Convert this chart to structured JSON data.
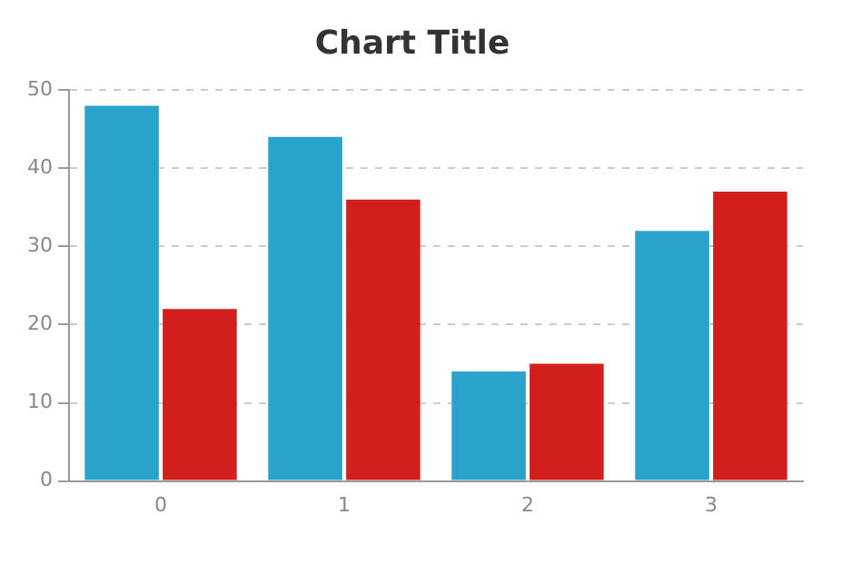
{
  "chart_data": {
    "type": "bar",
    "title": "Chart Title",
    "categories": [
      "0",
      "1",
      "2",
      "3"
    ],
    "series": [
      {
        "color": "#29a2cc",
        "values": [
          48,
          44,
          14,
          32
        ]
      },
      {
        "color": "#d31e1e",
        "values": [
          22,
          36,
          15,
          37
        ]
      }
    ],
    "ylim": [
      0,
      50
    ],
    "yticks": [
      0,
      10,
      20,
      30,
      40,
      50
    ],
    "grid": "y",
    "legend": false
  }
}
